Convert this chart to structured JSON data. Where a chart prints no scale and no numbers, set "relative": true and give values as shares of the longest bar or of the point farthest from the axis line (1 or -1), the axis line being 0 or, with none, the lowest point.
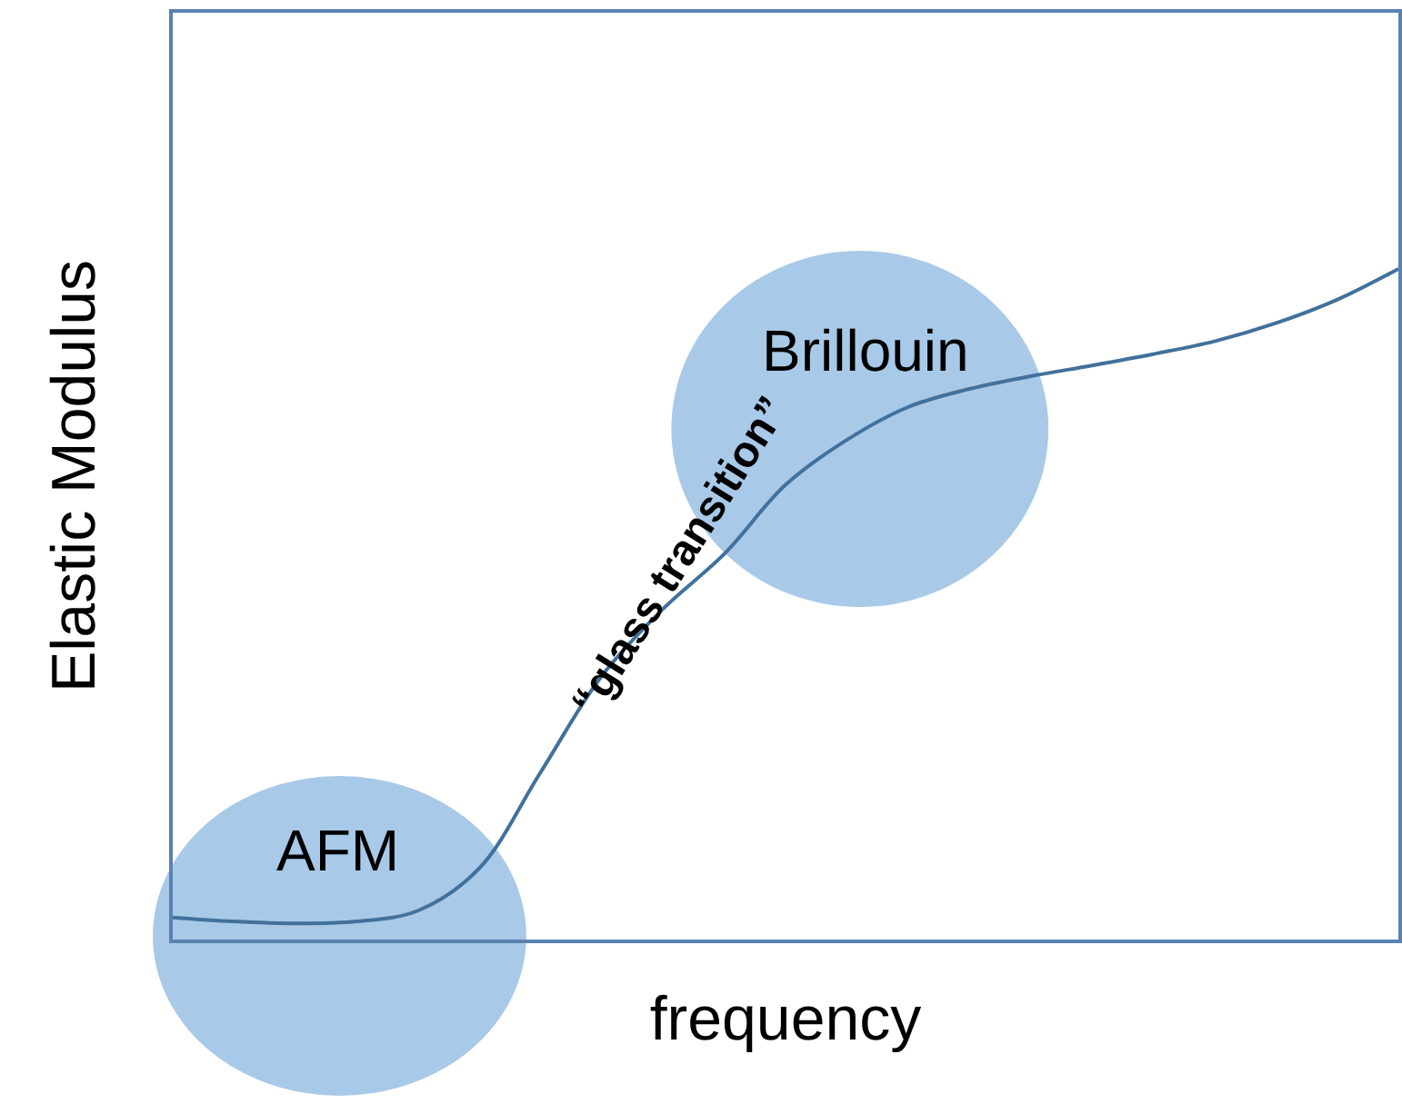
{
  "chart_data": {
    "type": "line",
    "relative": true,
    "xlabel": "frequency",
    "ylabel": "Elastic Modulus",
    "categories": [
      null,
      null,
      null,
      null,
      null,
      null,
      null,
      null,
      null,
      null,
      null,
      null,
      null,
      null,
      null,
      null,
      null,
      null,
      null,
      null,
      null
    ],
    "series": [
      {
        "color": "#41719c",
        "values": [
          0.033,
          0.027,
          0.024,
          0.027,
          0.043,
          0.106,
          0.249,
          0.393,
          0.493,
          0.575,
          0.678,
          0.745,
          0.794,
          0.821,
          0.84,
          0.856,
          0.873,
          0.892,
          0.919,
          0.954,
          1
        ]
      }
    ],
    "annotations": [
      "AFM",
      "Brillouin",
      "“glass transition”"
    ],
    "marker": "none",
    "line_style": "solid"
  }
}
